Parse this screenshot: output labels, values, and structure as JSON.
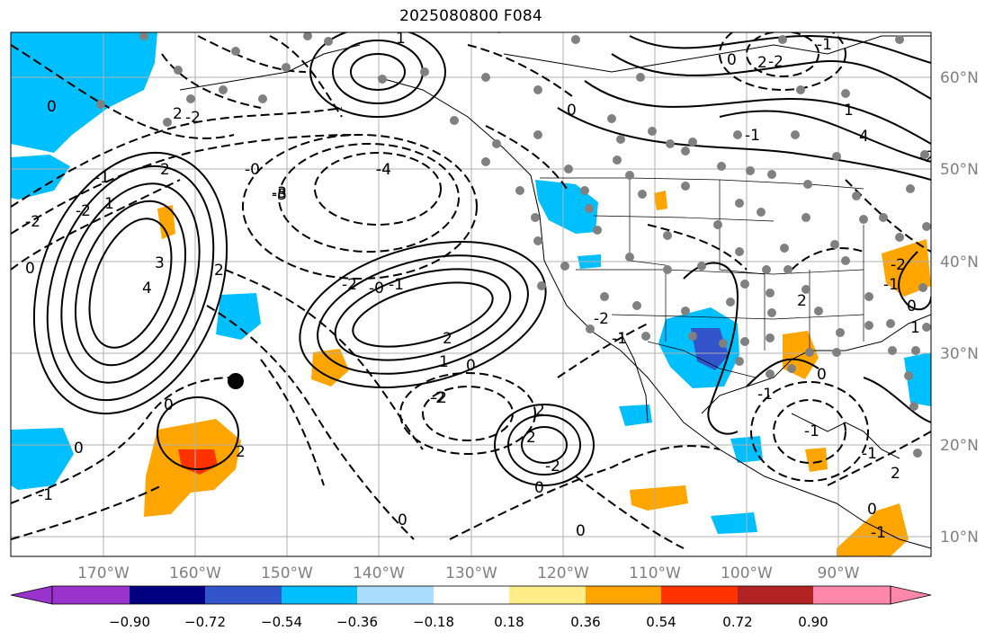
{
  "title": "2025080800 F084",
  "map": {
    "lat_ticks": [
      "10°N",
      "20°N",
      "30°N",
      "40°N",
      "50°N",
      "60°N"
    ],
    "lon_ticks": [
      "170°W",
      "160°W",
      "150°W",
      "140°W",
      "130°W",
      "120°W",
      "110°W",
      "100°W",
      "90°W"
    ],
    "contour_labels": [
      "0",
      "2",
      "1",
      "2",
      "0",
      "0",
      "-2",
      "-1",
      "-1",
      "4",
      "-4",
      "-3",
      "-2",
      "-0",
      "-1",
      "2",
      "1",
      "0",
      "-2",
      "-2",
      "-1",
      "2",
      "-2",
      "2",
      "0",
      "0",
      "0",
      "-1",
      "-1",
      "-2",
      "3",
      "4",
      "1",
      "2",
      "2",
      "0",
      "-2",
      "-3",
      "-4",
      "-1",
      "-2",
      "2",
      "-0",
      "0",
      "-2",
      "0",
      "-1",
      "-1",
      "0",
      "1",
      "-2",
      "0",
      "-2",
      "0",
      "-1",
      "2",
      "1",
      "-1",
      "2"
    ],
    "station_marker": "black-dot"
  },
  "colorbar": {
    "colors": [
      "#9933cc",
      "#000080",
      "#3355cc",
      "#00bfff",
      "#aaddff",
      "#ffffff",
      "#ffee88",
      "#ffa500",
      "#ff3300",
      "#b22222",
      "#ff88aa"
    ],
    "labels": [
      "−0.90",
      "−0.72",
      "−0.54",
      "−0.36",
      "−0.18",
      "0.18",
      "0.36",
      "0.54",
      "0.72",
      "0.90"
    ]
  },
  "fill_colors": {
    "blue": "#00bfff",
    "dark_blue": "#3355cc",
    "orange": "#ffa500",
    "red": "#ff3300"
  }
}
